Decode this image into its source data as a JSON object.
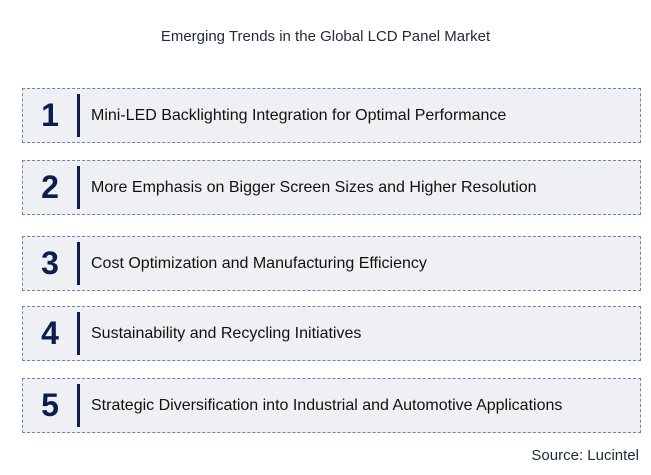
{
  "title": "Emerging Trends in the Global LCD Panel Market",
  "items": [
    {
      "number": "1",
      "label": "Mini-LED Backlighting Integration for Optimal Performance"
    },
    {
      "number": "2",
      "label": "More Emphasis on Bigger Screen Sizes and Higher Resolution"
    },
    {
      "number": "3",
      "label": "Cost Optimization and Manufacturing Efficiency"
    },
    {
      "number": "4",
      "label": "Sustainability and Recycling Initiatives"
    },
    {
      "number": "5",
      "label": "Strategic Diversification into Industrial and Automotive Applications"
    }
  ],
  "source": "Source: Lucintel",
  "colors": {
    "number": "#0c1e4d",
    "box_fill": "#eef0f3",
    "box_border": "#6f86ac"
  }
}
